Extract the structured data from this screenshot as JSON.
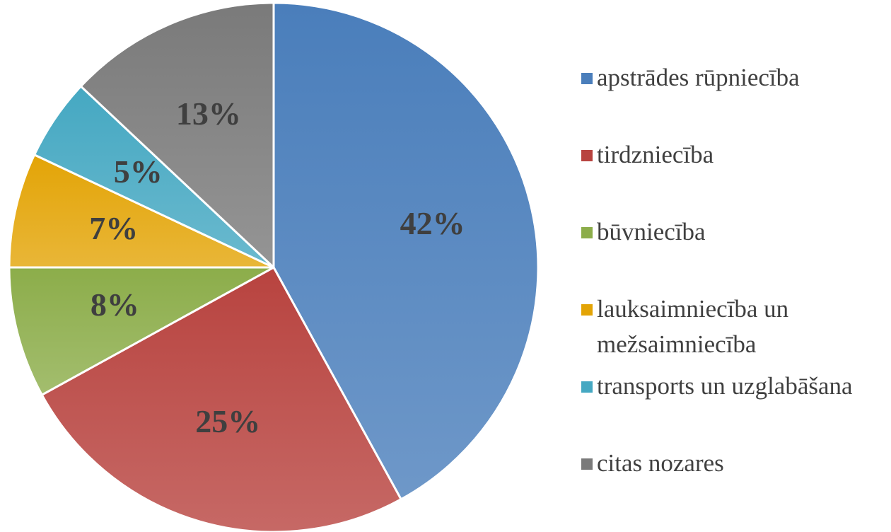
{
  "chart_data": {
    "type": "pie",
    "categories": [
      "apstrādes rūpniecība",
      "tirdzniecība",
      "būvniecība",
      "lauksaimniecība un mežsaimniecība",
      "transports un uzglabāšana",
      "citas nozares"
    ],
    "values": [
      42,
      25,
      8,
      7,
      5,
      13
    ],
    "value_labels": [
      "42%",
      "25%",
      "8%",
      "7%",
      "5%",
      "13%"
    ],
    "colors": [
      "#4a7ebb",
      "#b8433f",
      "#8cad4a",
      "#e3a406",
      "#45a8c2",
      "#7a7a7a"
    ],
    "legend": "right"
  }
}
